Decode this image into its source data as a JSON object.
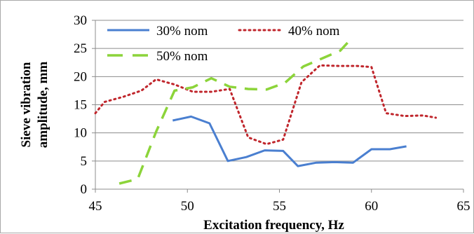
{
  "chart_data": {
    "type": "line",
    "xlabel": "Excitation frequency, Hz",
    "ylabel_lines": [
      "Sieve vibration",
      "amplitude, mm"
    ],
    "xlim": [
      45,
      65
    ],
    "ylim": [
      0,
      30
    ],
    "x_ticks": [
      45,
      50,
      55,
      60,
      65
    ],
    "y_ticks": [
      0,
      5,
      10,
      15,
      20,
      25,
      30
    ],
    "grid": "horizontal",
    "legend_position": "top-left-inside",
    "series": [
      {
        "name": "30% nom",
        "color": "#4a7fd0",
        "style": "solid",
        "x": [
          49.2,
          50.2,
          51.2,
          52.2,
          53.2,
          54.2,
          55.2,
          56.0,
          57.0,
          58.0,
          59.0,
          60.0,
          61.0,
          61.9
        ],
        "y": [
          12.2,
          12.9,
          11.7,
          5.0,
          5.7,
          6.9,
          6.8,
          4.1,
          4.7,
          4.8,
          4.7,
          7.1,
          7.1,
          7.6
        ]
      },
      {
        "name": "40% nom",
        "color": "#c0262c",
        "style": "dotted",
        "x": [
          45.0,
          45.5,
          46.5,
          47.5,
          48.3,
          49.3,
          50.3,
          51.3,
          52.3,
          53.3,
          54.3,
          55.2,
          56.2,
          57.2,
          58.2,
          59.2,
          60.0,
          60.8,
          61.8,
          62.8,
          63.5
        ],
        "y": [
          13.5,
          15.5,
          16.4,
          17.5,
          19.5,
          18.6,
          17.3,
          17.3,
          17.8,
          9.2,
          8.0,
          8.8,
          19.0,
          22.0,
          21.9,
          21.9,
          21.7,
          13.5,
          13.0,
          13.1,
          12.7
        ]
      },
      {
        "name": "50% nom",
        "color": "#8cd43a",
        "style": "dashed",
        "x": [
          46.3,
          47.3,
          48.3,
          49.3,
          50.3,
          51.3,
          52.3,
          53.3,
          54.3,
          55.3,
          56.3,
          57.3,
          58.3,
          58.7
        ],
        "y": [
          1.0,
          1.8,
          10.2,
          17.5,
          18.1,
          19.7,
          18.2,
          17.8,
          17.7,
          18.9,
          21.8,
          23.2,
          24.6,
          26.0
        ]
      }
    ]
  }
}
